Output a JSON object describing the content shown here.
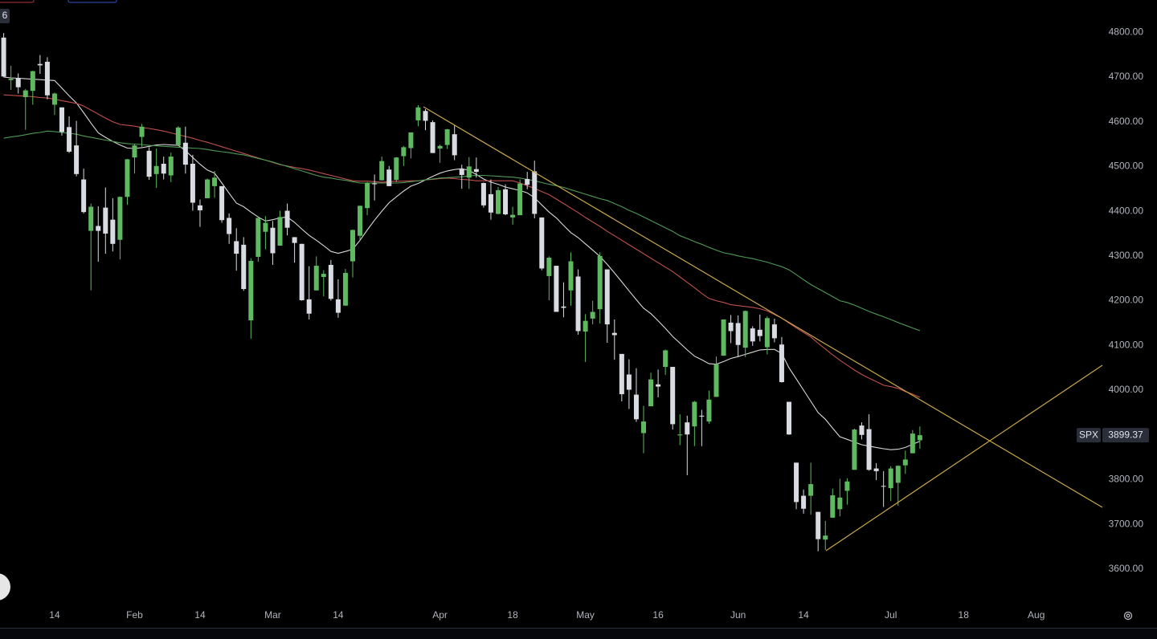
{
  "badge": "6",
  "chart_data": {
    "type": "candlestick",
    "ylim": [
      3469,
      4872
    ],
    "yticks": [
      {
        "value": 4800,
        "label": "4800.00"
      },
      {
        "value": 4700,
        "label": "4700.00"
      },
      {
        "value": 4600,
        "label": "4600.00"
      },
      {
        "value": 4500,
        "label": "4500.00"
      },
      {
        "value": 4400,
        "label": "4400.00"
      },
      {
        "value": 4300,
        "label": "4300.00"
      },
      {
        "value": 4200,
        "label": "4200.00"
      },
      {
        "value": 4100,
        "label": "4100.00"
      },
      {
        "value": 4000,
        "label": "4000.00"
      },
      {
        "value": 3900,
        "label": "3900.00"
      },
      {
        "value": 3800,
        "label": "3800.00"
      },
      {
        "value": 3700,
        "label": "3700.00"
      },
      {
        "value": 3600,
        "label": "3600.00"
      }
    ],
    "grid": false,
    "up_color": "#5fb961",
    "down_color": "#d9dbe2",
    "categories": [
      null,
      null,
      null,
      null,
      null,
      null,
      null,
      "14",
      null,
      null,
      null,
      null,
      null,
      null,
      null,
      null,
      null,
      null,
      "Feb",
      null,
      null,
      null,
      null,
      null,
      null,
      null,
      null,
      "14",
      null,
      null,
      null,
      null,
      null,
      null,
      null,
      null,
      null,
      "Mar",
      null,
      null,
      null,
      null,
      null,
      null,
      null,
      null,
      "14",
      null,
      null,
      null,
      null,
      null,
      null,
      null,
      null,
      null,
      null,
      null,
      null,
      null,
      "Apr",
      null,
      null,
      null,
      null,
      null,
      null,
      null,
      null,
      null,
      "18",
      null,
      null,
      null,
      null,
      null,
      null,
      null,
      null,
      null,
      "May",
      null,
      null,
      null,
      null,
      null,
      null,
      null,
      null,
      null,
      "16",
      null,
      null,
      null,
      null,
      null,
      null,
      null,
      null,
      null,
      null,
      "Jun",
      null,
      null,
      null,
      null,
      null,
      null,
      null,
      null,
      "14",
      null,
      null,
      null,
      null,
      null,
      null,
      null,
      null,
      null,
      null,
      null,
      "Jul",
      null,
      null,
      null,
      null,
      null,
      null,
      null,
      null,
      null,
      "18",
      null,
      null,
      null,
      null,
      null,
      null,
      null,
      null,
      null,
      "Aug"
    ],
    "open": [
      4788,
      4693,
      4698,
      4655,
      4669,
      4729,
      4734,
      4638,
      4632,
      4588,
      4547,
      4471,
      4356,
      4367,
      4408,
      4381,
      4336,
      4432,
      4520,
      4566,
      4535,
      4483,
      4506,
      4480,
      4547,
      4553,
      4506,
      4413,
      4429,
      4456,
      4456,
      4385,
      4333,
      4325,
      4156,
      4298,
      4354,
      4363,
      4323,
      4401,
      4342,
      4327,
      4203,
      4223,
      4253,
      4280,
      4203,
      4189,
      4288,
      4345,
      4407,
      4462,
      4469,
      4493,
      4470,
      4523,
      4541,
      4603,
      4624,
      4599,
      4540,
      4548,
      4572,
      4494,
      4475,
      4494,
      4463,
      4438,
      4394,
      4449,
      4386,
      4391,
      4472,
      4489,
      4386,
      4255,
      4278,
      4187,
      4223,
      4254,
      4131,
      4160,
      4181,
      4270,
      4128,
      4081,
      4035,
      3990,
      3904,
      3964,
      4013,
      4052,
      4052,
      3899,
      3928,
      3919,
      3943,
      3930,
      3985,
      4077,
      4151,
      4150,
      4095,
      4138,
      4135,
      4096,
      4147,
      4102,
      3974,
      3838,
      3764,
      3764,
      3728,
      3666,
      3715,
      3734,
      3775,
      3822,
      3921,
      3913,
      3825,
      3786,
      3781,
      3793,
      3832,
      3859,
      3888,
      null,
      null,
      null,
      null,
      null,
      null,
      null,
      null,
      null,
      null,
      null,
      null,
      null,
      null,
      null,
      null
    ],
    "high": [
      4798,
      4725,
      4708,
      4673,
      4714,
      4749,
      4744,
      4665,
      4632,
      4612,
      4602,
      4495,
      4417,
      4411,
      4453,
      4429,
      4433,
      4517,
      4550,
      4595,
      4543,
      4540,
      4522,
      4531,
      4590,
      4589,
      4526,
      4426,
      4473,
      4490,
      4456,
      4395,
      4362,
      4342,
      4295,
      4385,
      4389,
      4378,
      4401,
      4417,
      4342,
      4327,
      4277,
      4299,
      4268,
      4291,
      4248,
      4271,
      4359,
      4413,
      4465,
      4482,
      4522,
      4501,
      4521,
      4546,
      4576,
      4637,
      4628,
      4603,
      4549,
      4584,
      4593,
      4504,
      4521,
      4520,
      4464,
      4471,
      4454,
      4460,
      4410,
      4471,
      4488,
      4513,
      4386,
      4299,
      4278,
      4241,
      4308,
      4270,
      4170,
      4200,
      4308,
      4270,
      4158,
      4081,
      4069,
      4049,
      3965,
      4039,
      4046,
      4091,
      4052,
      3946,
      3943,
      3976,
      3956,
      3999,
      4075,
      4158,
      4168,
      4167,
      4178,
      4143,
      4169,
      4165,
      4160,
      4119,
      3974,
      3838,
      3778,
      3838,
      3728,
      3708,
      3780,
      3802,
      3803,
      3914,
      3928,
      3946,
      3837,
      3819,
      3830,
      3832,
      3865,
      3911,
      3919,
      null,
      null,
      null,
      null,
      null,
      null,
      null,
      null,
      null,
      null,
      null,
      null,
      null,
      null,
      null,
      null
    ],
    "low": [
      4699,
      4671,
      4663,
      4582,
      4638,
      4707,
      4650,
      4615,
      4569,
      4530,
      4478,
      4395,
      4223,
      4287,
      4305,
      4310,
      4292,
      4414,
      4484,
      4544,
      4470,
      4452,
      4471,
      4465,
      4547,
      4484,
      4401,
      4365,
      4429,
      4430,
      4374,
      4327,
      4267,
      4222,
      4115,
      4287,
      4315,
      4280,
      4323,
      4346,
      4285,
      4200,
      4158,
      4223,
      4210,
      4200,
      4162,
      4188,
      4252,
      4336,
      4391,
      4424,
      4469,
      4456,
      4465,
      4501,
      4518,
      4590,
      4581,
      4530,
      4508,
      4539,
      4514,
      4450,
      4450,
      4475,
      4408,
      4381,
      4393,
      4391,
      4370,
      4391,
      4449,
      4384,
      4268,
      4201,
      4175,
      4163,
      4189,
      4124,
      4063,
      4147,
      4149,
      4106,
      4068,
      3975,
      3958,
      3929,
      3859,
      3964,
      3984,
      4034,
      3912,
      3877,
      3810,
      3875,
      3875,
      3925,
      3985,
      4077,
      4105,
      4074,
      4074,
      4099,
      4109,
      4080,
      4107,
      4017,
      3900,
      3734,
      3724,
      3722,
      3640,
      3643,
      3715,
      3718,
      3744,
      3822,
      3890,
      3820,
      3799,
      3739,
      3752,
      3742,
      3813,
      3859,
      3869,
      null,
      null,
      null,
      null,
      null,
      null,
      null,
      null,
      null,
      null,
      null,
      null,
      null,
      null,
      null,
      null
    ],
    "close": [
      4701,
      4696,
      4677,
      4670,
      4713,
      4726,
      4659,
      4663,
      4577,
      4533,
      4483,
      4398,
      4410,
      4356,
      4350,
      4327,
      4432,
      4516,
      4547,
      4589,
      4477,
      4501,
      4484,
      4522,
      4587,
      4504,
      4419,
      4402,
      4471,
      4475,
      4380,
      4349,
      4305,
      4226,
      4289,
      4385,
      4374,
      4306,
      4387,
      4363,
      4329,
      4201,
      4171,
      4278,
      4260,
      4204,
      4173,
      4262,
      4358,
      4412,
      4463,
      4461,
      4512,
      4456,
      4520,
      4543,
      4576,
      4632,
      4602,
      4530,
      4546,
      4583,
      4525,
      4481,
      4500,
      4488,
      4413,
      4397,
      4447,
      4393,
      4392,
      4462,
      4459,
      4394,
      4272,
      4296,
      4175,
      4184,
      4288,
      4132,
      4155,
      4175,
      4300,
      4147,
      4123,
      3991,
      4001,
      3935,
      3930,
      4024,
      4008,
      4089,
      3924,
      3901,
      3901,
      3974,
      3941,
      3979,
      4058,
      4158,
      4132,
      4101,
      4177,
      4109,
      4121,
      4161,
      4116,
      4018,
      3901,
      3750,
      3735,
      3790,
      3667,
      3675,
      3765,
      3760,
      3796,
      3912,
      3900,
      3822,
      3819,
      3785,
      3825,
      3831,
      3845,
      3903,
      3899.37,
      null,
      null,
      null,
      null,
      null,
      null,
      null,
      null,
      null,
      null,
      null,
      null,
      null,
      null,
      null,
      null
    ],
    "moving_averages": [
      {
        "color": "#d8d8d8",
        "values": [
          4700,
          4698,
          4697,
          4696,
          4695,
          4694,
          4693,
          4692,
          4675,
          4658,
          4642,
          4620,
          4597,
          4575,
          4565,
          4556,
          4548,
          4541,
          4540,
          4542,
          4545,
          4548,
          4549,
          4548,
          4547,
          4535,
          4520,
          4505,
          4492,
          4485,
          4463,
          4440,
          4418,
          4410,
          4398,
          4387,
          4378,
          4381,
          4385,
          4387,
          4375,
          4360,
          4346,
          4335,
          4323,
          4310,
          4306,
          4310,
          4315,
          4335,
          4358,
          4380,
          4400,
          4419,
          4432,
          4445,
          4456,
          4462,
          4470,
          4478,
          4485,
          4490,
          4493,
          4495,
          4491,
          4482,
          4472,
          4465,
          4460,
          4454,
          4450,
          4446,
          4441,
          4430,
          4414,
          4398,
          4385,
          4368,
          4352,
          4341,
          4327,
          4313,
          4299,
          4281,
          4262,
          4242,
          4222,
          4202,
          4183,
          4171,
          4155,
          4138,
          4120,
          4105,
          4090,
          4076,
          4068,
          4059,
          4058,
          4064,
          4071,
          4075,
          4080,
          4085,
          4090,
          4091,
          4091,
          4082,
          4050,
          4025,
          4000,
          3975,
          3950,
          3935,
          3915,
          3896,
          3890,
          3884,
          3878,
          3875,
          3872,
          3869,
          3867,
          3868,
          3872,
          3879,
          3886,
          null,
          null,
          null,
          null,
          null,
          null,
          null,
          null,
          null,
          null,
          null,
          null,
          null,
          null,
          null,
          null
        ]
      },
      {
        "color": "#c0504d",
        "values": [
          4660,
          4659,
          4658,
          4657,
          4656,
          4654,
          4653,
          4650,
          4647,
          4644,
          4641,
          4635,
          4626,
          4617,
          4608,
          4600,
          4594,
          4592,
          4590,
          4587,
          4585,
          4582,
          4579,
          4575,
          4571,
          4567,
          4563,
          4558,
          4554,
          4549,
          4544,
          4539,
          4534,
          4529,
          4524,
          4519,
          4514,
          4509,
          4504,
          4501,
          4498,
          4495,
          4492,
          4488,
          4484,
          4480,
          4476,
          4472,
          4468,
          4467,
          4467,
          4466,
          4465,
          4466,
          4467,
          4467,
          4468,
          4468,
          4470,
          4471,
          4473,
          4474,
          4473,
          4471,
          4470,
          4468,
          4468,
          4468,
          4468,
          4468,
          4468,
          4463,
          4457,
          4451,
          4444,
          4437,
          4427,
          4417,
          4407,
          4397,
          4386,
          4376,
          4366,
          4355,
          4345,
          4335,
          4325,
          4315,
          4305,
          4295,
          4285,
          4275,
          4265,
          4253,
          4241,
          4229,
          4216,
          4205,
          4200,
          4196,
          4191,
          4189,
          4187,
          4185,
          4182,
          4177,
          4169,
          4161,
          4150,
          4139,
          4129,
          4119,
          4105,
          4092,
          4079,
          4067,
          4056,
          4045,
          4035,
          4027,
          4019,
          4011,
          4008,
          4004,
          3997,
          3991,
          3984,
          null,
          null,
          null,
          null,
          null,
          null,
          null,
          null,
          null,
          null,
          null,
          null,
          null,
          null,
          null,
          null
        ]
      },
      {
        "color": "#4e9a55",
        "values": [
          4563,
          4566,
          4568,
          4571,
          4574,
          4576,
          4579,
          4578,
          4576,
          4574,
          4572,
          4568,
          4565,
          4562,
          4559,
          4556,
          4553,
          4551,
          4550,
          4549,
          4547,
          4546,
          4545,
          4544,
          4543,
          4542,
          4541,
          4540,
          4538,
          4535,
          4533,
          4531,
          4528,
          4526,
          4522,
          4518,
          4514,
          4510,
          4505,
          4500,
          4495,
          4490,
          4485,
          4480,
          4476,
          4474,
          4471,
          4469,
          4466,
          4463,
          4463,
          4463,
          4463,
          4463,
          4463,
          4464,
          4466,
          4468,
          4470,
          4472,
          4474,
          4475,
          4476,
          4477,
          4479,
          4480,
          4480,
          4479,
          4478,
          4477,
          4476,
          4474,
          4471,
          4468,
          4464,
          4460,
          4457,
          4453,
          4448,
          4443,
          4438,
          4433,
          4428,
          4424,
          4417,
          4410,
          4402,
          4395,
          4387,
          4379,
          4371,
          4363,
          4355,
          4345,
          4339,
          4332,
          4326,
          4319,
          4313,
          4307,
          4304,
          4300,
          4297,
          4294,
          4290,
          4286,
          4281,
          4276,
          4269,
          4258,
          4247,
          4236,
          4227,
          4218,
          4209,
          4200,
          4196,
          4190,
          4183,
          4176,
          4170,
          4164,
          4158,
          4151,
          4145,
          4139,
          4133,
          null,
          null,
          null,
          null,
          null,
          null,
          null,
          null,
          null,
          null,
          null,
          null,
          null,
          null,
          null,
          null
        ]
      }
    ],
    "last_price": {
      "symbol": "SPX",
      "value": 3899.37
    }
  }
}
